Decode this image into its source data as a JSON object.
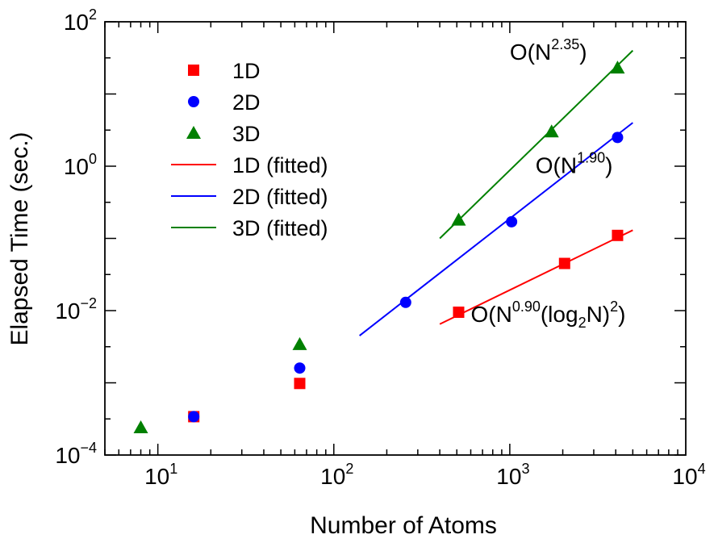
{
  "chart_data": {
    "type": "scatter",
    "xlabel": "Number of Atoms",
    "ylabel": "Elapsed Time (sec.)",
    "xscale": "log",
    "yscale": "log",
    "xlim": [
      5,
      10000
    ],
    "ylim": [
      0.0001,
      100
    ],
    "x_ticks": [
      {
        "base": "10",
        "exp": "1",
        "value": 10
      },
      {
        "base": "10",
        "exp": "2",
        "value": 100
      },
      {
        "base": "10",
        "exp": "3",
        "value": 1000
      },
      {
        "base": "10",
        "exp": "4",
        "value": 10000
      }
    ],
    "y_ticks": [
      {
        "base": "10",
        "exp": "−4",
        "value": 0.0001
      },
      {
        "base": "10",
        "exp": "−2",
        "value": 0.01
      },
      {
        "base": "10",
        "exp": "0",
        "value": 1
      },
      {
        "base": "10",
        "exp": "2",
        "value": 100
      }
    ],
    "legend_position": "top-left",
    "series": [
      {
        "name": "1D",
        "kind": "points",
        "marker": "square",
        "color": "#ff0000",
        "x": [
          16,
          64,
          512,
          2048,
          4096
        ],
        "y": [
          0.00034,
          0.00098,
          0.0095,
          0.045,
          0.11
        ]
      },
      {
        "name": "2D",
        "kind": "points",
        "marker": "circle",
        "color": "#0000ff",
        "x": [
          16,
          64,
          256,
          1024,
          4096
        ],
        "y": [
          0.00034,
          0.0016,
          0.013,
          0.17,
          2.5
        ]
      },
      {
        "name": "3D",
        "kind": "points",
        "marker": "triangle",
        "color": "#008000",
        "x": [
          8,
          64,
          512,
          1728,
          4096
        ],
        "y": [
          0.00024,
          0.0034,
          0.18,
          3.0,
          23
        ]
      },
      {
        "name": "1D (fitted)",
        "kind": "line",
        "color": "#ff0000",
        "x": [
          400,
          5000
        ],
        "y": [
          0.0065,
          0.13
        ]
      },
      {
        "name": "2D (fitted)",
        "kind": "line",
        "color": "#0000ff",
        "x": [
          140,
          5000
        ],
        "y": [
          0.0045,
          4.0
        ]
      },
      {
        "name": "3D (fitted)",
        "kind": "line",
        "color": "#008000",
        "x": [
          400,
          5000
        ],
        "y": [
          0.1,
          40
        ]
      }
    ],
    "annotations": [
      {
        "id": "3d",
        "x": 1000,
        "y": 30,
        "parts": [
          {
            "t": "O(N"
          },
          {
            "t": "2.35",
            "sup": true
          },
          {
            "t": ")"
          }
        ]
      },
      {
        "id": "2d",
        "x": 1400,
        "y": 0.8,
        "parts": [
          {
            "t": "O(N"
          },
          {
            "t": "1.90",
            "sup": true
          },
          {
            "t": ")"
          }
        ]
      },
      {
        "id": "1d",
        "x": 600,
        "y": 0.007,
        "parts": [
          {
            "t": "O(N"
          },
          {
            "t": "0.90",
            "sup": true
          },
          {
            "t": "(log"
          },
          {
            "t": "2",
            "sub": true
          },
          {
            "t": "N)"
          },
          {
            "t": "2",
            "sup": true
          },
          {
            "t": ")"
          }
        ]
      }
    ]
  }
}
